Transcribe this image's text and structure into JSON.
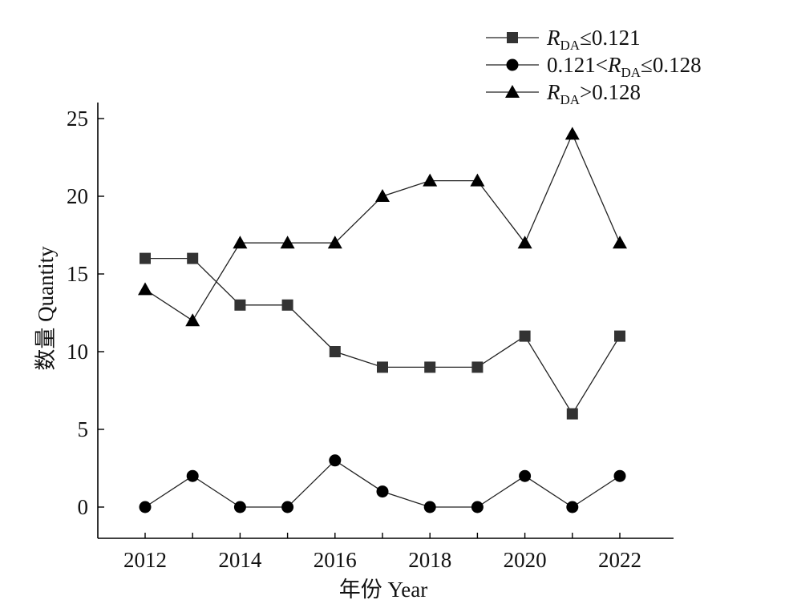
{
  "chart_data": {
    "type": "line",
    "title": "",
    "xlabel": "年份 Year",
    "ylabel": "数量 Quantity",
    "x": [
      2012,
      2013,
      2014,
      2015,
      2016,
      2017,
      2018,
      2019,
      2020,
      2021,
      2022
    ],
    "x_ticks": [
      "2012",
      "2014",
      "2016",
      "2018",
      "2020",
      "2022"
    ],
    "y_ticks": [
      "0",
      "5",
      "10",
      "15",
      "20",
      "25"
    ],
    "xlim": [
      2011,
      2023
    ],
    "ylim": [
      -2,
      25
    ],
    "grid": false,
    "legend_position": "top-right",
    "series": [
      {
        "name": "R_DA ≤ 0.121",
        "legend": {
          "prefix": "",
          "R": "R",
          "sub": "DA",
          "suffix": "≤0.121"
        },
        "marker": "square",
        "color": "#333333",
        "values": [
          16,
          16,
          13,
          13,
          10,
          9,
          9,
          9,
          11,
          6,
          11
        ]
      },
      {
        "name": "0.121 < R_DA ≤ 0.128",
        "legend": {
          "prefix": "0.121<",
          "R": "R",
          "sub": "DA",
          "suffix": "≤0.128"
        },
        "marker": "circle",
        "color": "#000000",
        "values": [
          0,
          2,
          0,
          0,
          3,
          1,
          0,
          0,
          2,
          0,
          2
        ]
      },
      {
        "name": "R_DA > 0.128",
        "legend": {
          "prefix": "",
          "R": "R",
          "sub": "DA",
          "suffix": ">0.128"
        },
        "marker": "triangle",
        "color": "#000000",
        "values": [
          14,
          12,
          17,
          17,
          17,
          20,
          21,
          21,
          17,
          24,
          17
        ]
      }
    ]
  }
}
